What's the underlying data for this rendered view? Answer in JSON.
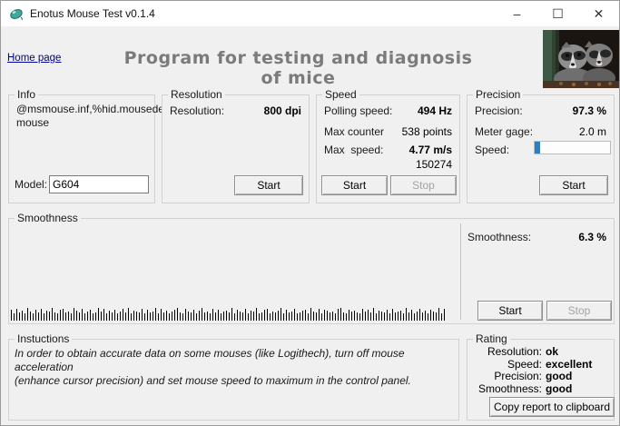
{
  "window": {
    "title": "Enotus Mouse Test v0.1.4",
    "controls": {
      "minimize": "–",
      "maximize": "☐",
      "close": "✕"
    }
  },
  "header": {
    "home_link": "Home page",
    "title": "Program for testing and diagnosis of mice"
  },
  "info": {
    "legend": "Info",
    "device_lines": [
      "@msmouse.inf,%hid.mousede",
      "mouse"
    ],
    "model_label": "Model:",
    "model_value": "G604"
  },
  "resolution": {
    "legend": "Resolution",
    "label": "Resolution:",
    "value": "800 dpi",
    "start_label": "Start"
  },
  "speed": {
    "legend": "Speed",
    "polling_label": "Polling speed:",
    "polling_value": "494 Hz",
    "counter_label": "Max counter",
    "counter_value": "538 points",
    "max_label": "Max  speed:",
    "max_value": "4.77 m/s",
    "max_sub_value": "150274",
    "start_label": "Start",
    "stop_label": "Stop"
  },
  "precision": {
    "legend": "Precision",
    "precision_label": "Precision:",
    "precision_value": "97.3 %",
    "gage_label": "Meter gage:",
    "gage_value": "2.0 m",
    "speed_label": "Speed:",
    "progress_percent": 7,
    "start_label": "Start"
  },
  "smoothness": {
    "legend": "Smoothness",
    "label": "Smoothness:",
    "value": "6.3 %",
    "start_label": "Start",
    "stop_label": "Stop",
    "bars": [
      12,
      8,
      13,
      9,
      11,
      8,
      14,
      10,
      8,
      12,
      9,
      13,
      8,
      11,
      10,
      14,
      9,
      8,
      12,
      13,
      9,
      10,
      8,
      14,
      11,
      9,
      13,
      8,
      10,
      12,
      8,
      9,
      14,
      10,
      13,
      8,
      11,
      9,
      12,
      8,
      10,
      13,
      9,
      14,
      8,
      11,
      10,
      9,
      13,
      8,
      12,
      9,
      10,
      14,
      8,
      13,
      9,
      11,
      8,
      10,
      12,
      14,
      9,
      8,
      13,
      10,
      9,
      12,
      8,
      11,
      14,
      9,
      10,
      8,
      13,
      9,
      12,
      8,
      10,
      11,
      9,
      14,
      8,
      12,
      10,
      9,
      13,
      8,
      11,
      10,
      14,
      8,
      9,
      12,
      13,
      8,
      10,
      9,
      11,
      14,
      8,
      12,
      9,
      10,
      13,
      8,
      9,
      11,
      12,
      8,
      14,
      10,
      9,
      13,
      8,
      12,
      11,
      9,
      10,
      8,
      13,
      14,
      9,
      8,
      12,
      10,
      11,
      9,
      8,
      13,
      10,
      12,
      9,
      14,
      8,
      11,
      10,
      9,
      12,
      8,
      13,
      9,
      10,
      11,
      8,
      14,
      9,
      12,
      8,
      10,
      13,
      9,
      11,
      8,
      12,
      10,
      9,
      14,
      8,
      13
    ]
  },
  "instructions": {
    "legend": "Instuctions",
    "lines": [
      "In order to obtain accurate data on some mouses (like Logithech), turn off mouse acceleration",
      "(enhance cursor precision) and set mouse speed to maximum in the control panel."
    ]
  },
  "rating": {
    "legend": "Rating",
    "rows": [
      {
        "label": "Resolution:",
        "value": "ok"
      },
      {
        "label": "Speed:",
        "value": "excellent"
      },
      {
        "label": "Precision:",
        "value": "good"
      },
      {
        "label": "Smoothness:",
        "value": "good"
      }
    ],
    "copy_button": "Copy report to clipboard"
  },
  "colors": {
    "accent_blue": "#2e7fc2",
    "link_blue": "#000099",
    "title_gray": "#7b7b7b",
    "window_bg": "#f0f0f0"
  }
}
